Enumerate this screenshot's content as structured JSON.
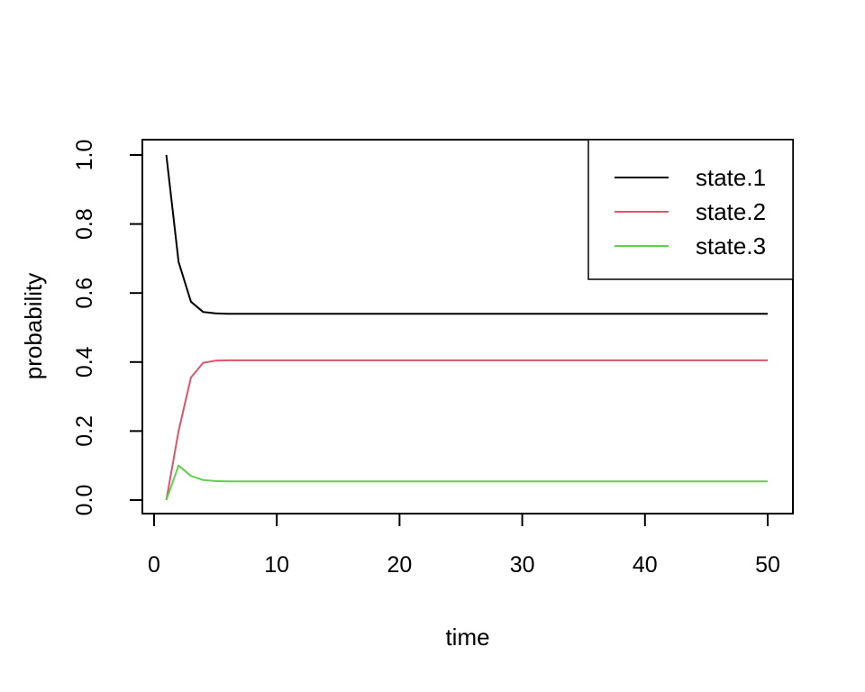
{
  "figure": {
    "background": "#ffffff",
    "frame_color": "#000000"
  },
  "chart_data": {
    "type": "line",
    "title": "",
    "xlabel": "time",
    "ylabel": "probability",
    "xlim": [
      0,
      50
    ],
    "ylim": [
      0.0,
      1.0
    ],
    "x_ticks": [
      0,
      10,
      20,
      30,
      40,
      50
    ],
    "y_ticks": [
      0.0,
      0.2,
      0.4,
      0.6,
      0.8,
      1.0
    ],
    "y_tick_labels": [
      "0.0",
      "0.2",
      "0.4",
      "0.6",
      "0.8",
      "1.0"
    ],
    "grid": false,
    "legend_position": "topright",
    "series": [
      {
        "name": "state.1",
        "color": "#000000",
        "points": [
          [
            1,
            1.0
          ],
          [
            2,
            0.69
          ],
          [
            3,
            0.575
          ],
          [
            4,
            0.545
          ],
          [
            5,
            0.541
          ],
          [
            6,
            0.54
          ],
          [
            10,
            0.54
          ],
          [
            20,
            0.54
          ],
          [
            30,
            0.54
          ],
          [
            40,
            0.54
          ],
          [
            50,
            0.54
          ]
        ]
      },
      {
        "name": "state.2",
        "color": "#DF536B",
        "points": [
          [
            1,
            0.0
          ],
          [
            2,
            0.2
          ],
          [
            3,
            0.355
          ],
          [
            4,
            0.398
          ],
          [
            5,
            0.404
          ],
          [
            6,
            0.405
          ],
          [
            10,
            0.405
          ],
          [
            20,
            0.405
          ],
          [
            30,
            0.405
          ],
          [
            40,
            0.405
          ],
          [
            50,
            0.405
          ]
        ]
      },
      {
        "name": "state.3",
        "color": "#61D04F",
        "points": [
          [
            1,
            0.0
          ],
          [
            2,
            0.1
          ],
          [
            3,
            0.07
          ],
          [
            4,
            0.058
          ],
          [
            5,
            0.055
          ],
          [
            6,
            0.054
          ],
          [
            10,
            0.054
          ],
          [
            20,
            0.054
          ],
          [
            30,
            0.054
          ],
          [
            40,
            0.054
          ],
          [
            50,
            0.054
          ]
        ]
      }
    ]
  },
  "legend": {
    "entries": [
      {
        "label": "state.1",
        "color": "#000000"
      },
      {
        "label": "state.2",
        "color": "#DF536B"
      },
      {
        "label": "state.3",
        "color": "#61D04F"
      }
    ]
  }
}
